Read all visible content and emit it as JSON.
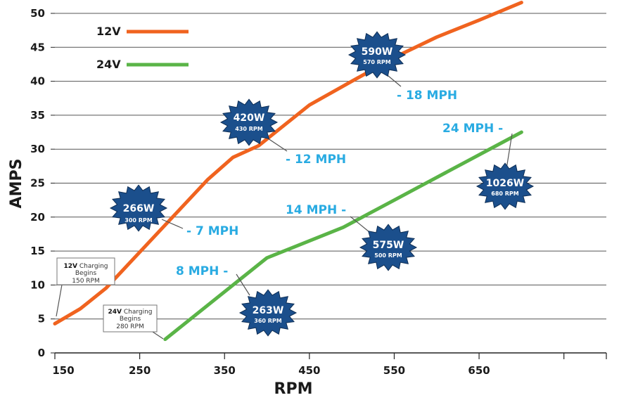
{
  "chart_data": {
    "type": "line",
    "xlabel": "RPM",
    "ylabel": "AMPS",
    "xlim": [
      150,
      800
    ],
    "ylim": [
      0,
      50
    ],
    "x_ticks": [
      "150",
      "250",
      "350",
      "450",
      "550",
      "650"
    ],
    "y_ticks": [
      "0",
      "5",
      "10",
      "15",
      "20",
      "25",
      "30",
      "35",
      "40",
      "45",
      "50"
    ],
    "grid": "horizontal",
    "legend_position": "top-left",
    "series": [
      {
        "name": "12V",
        "color": "#f0631f",
        "x": [
          150,
          180,
          210,
          240,
          270,
          300,
          330,
          360,
          390,
          420,
          450,
          500,
          550,
          600,
          650,
          700
        ],
        "y": [
          4.3,
          6.5,
          9.5,
          13.5,
          17.5,
          21.5,
          25.5,
          28.8,
          30.5,
          33.5,
          36.5,
          40.0,
          43.5,
          46.5,
          49.0,
          51.6
        ]
      },
      {
        "name": "24V",
        "color": "#5ab447",
        "x": [
          280,
          310,
          340,
          370,
          400,
          430,
          460,
          490,
          520,
          550,
          580,
          610,
          640,
          670,
          700
        ],
        "y": [
          2.0,
          5.0,
          8.0,
          11.0,
          14.0,
          15.5,
          17.0,
          18.5,
          20.5,
          22.5,
          24.5,
          26.5,
          28.5,
          30.5,
          32.5
        ]
      }
    ],
    "annotations": {
      "mph": [
        "- 7 MPH",
        "- 12 MPH",
        "- 18 MPH",
        "8 MPH -",
        "14 MPH -",
        "24 MPH -"
      ],
      "bursts": [
        {
          "watts": "266W",
          "rpm": "300 RPM",
          "color": "#1b4f8c"
        },
        {
          "watts": "420W",
          "rpm": "430 RPM",
          "color": "#1b4f8c"
        },
        {
          "watts": "590W",
          "rpm": "570 RPM",
          "color": "#1b4f8c"
        },
        {
          "watts": "263W",
          "rpm": "360 RPM",
          "color": "#1b4f8c"
        },
        {
          "watts": "575W",
          "rpm": "500 RPM",
          "color": "#1b4f8c"
        },
        {
          "watts": "1026W",
          "rpm": "680 RPM",
          "color": "#1b4f8c"
        }
      ],
      "boxes": [
        {
          "bold": "12V",
          "line1": "Charging",
          "line2": "Begins",
          "line3": "150 RPM"
        },
        {
          "bold": "24V",
          "line1": "Charging",
          "line2": "Begins",
          "line3": "280 RPM"
        }
      ]
    }
  }
}
